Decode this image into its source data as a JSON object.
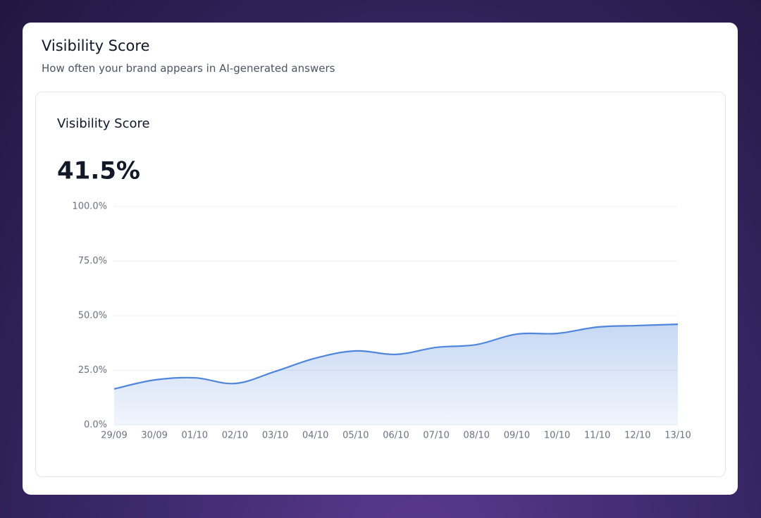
{
  "header": {
    "title": "Visibility Score",
    "subtitle": "How often your brand appears in AI-generated answers"
  },
  "chart_data": {
    "type": "area",
    "title": "Visibility Score",
    "headline": "41.5%",
    "categories": [
      "29/09",
      "30/09",
      "01/10",
      "02/10",
      "03/10",
      "04/10",
      "05/10",
      "06/10",
      "07/10",
      "08/10",
      "09/10",
      "10/10",
      "11/10",
      "12/10",
      "13/10"
    ],
    "series": [
      {
        "name": "Visibility Score",
        "color": "#4f86dc",
        "values": [
          16.5,
          20.6,
          21.6,
          19,
          24.5,
          30.6,
          33.9,
          32.3,
          35.5,
          36.8,
          41.6,
          41.9,
          44.8,
          45.5,
          46.1
        ]
      }
    ],
    "ylim": [
      0,
      100
    ],
    "yticks": [
      {
        "value": 0,
        "label": "0.0%"
      },
      {
        "value": 25,
        "label": "25.0%"
      },
      {
        "value": 50,
        "label": "50.0%"
      },
      {
        "value": 75,
        "label": "75.0%"
      },
      {
        "value": 100,
        "label": "100.0%"
      }
    ],
    "grid": true
  }
}
